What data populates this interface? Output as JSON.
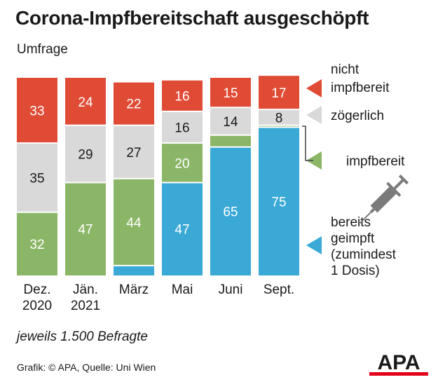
{
  "header": {
    "title": "Corona-Impfbereitschaft ausgeschöpft",
    "subtitle": "Umfrage"
  },
  "footer": {
    "note": "jeweils 1.500 Befragte",
    "credit": "Grafik: © APA, Quelle: Uni Wien",
    "logo_text": "APA"
  },
  "chart_data": {
    "type": "bar",
    "stacked": true,
    "categories": [
      [
        "Dez.",
        "2020"
      ],
      [
        "Jän.",
        "2021"
      ],
      [
        "März"
      ],
      [
        "Mai"
      ],
      [
        "Juni"
      ],
      [
        "Sept."
      ]
    ],
    "ylim": [
      0,
      100
    ],
    "series": [
      {
        "name": "bereits geimpft (zumindest 1 Dosis)",
        "color": "#3aa9d6",
        "values": [
          0,
          0,
          5,
          47,
          65,
          75
        ],
        "labels": [
          "",
          "",
          "",
          "47",
          "65",
          "75"
        ]
      },
      {
        "name": "impfbereit",
        "color": "#8bb667",
        "values": [
          32,
          47,
          44,
          20,
          6,
          1
        ],
        "labels": [
          "32",
          "47",
          "44",
          "20",
          "",
          ""
        ]
      },
      {
        "name": "zögerlich",
        "color": "#d9d9d9",
        "values": [
          35,
          29,
          27,
          16,
          14,
          8
        ],
        "labels": [
          "35",
          "29",
          "27",
          "16",
          "14",
          "8"
        ]
      },
      {
        "name": "nicht impfbereit",
        "color": "#e04b35",
        "values": [
          33,
          24,
          22,
          16,
          15,
          17
        ],
        "labels": [
          "33",
          "24",
          "22",
          "16",
          "15",
          "17"
        ]
      }
    ],
    "legend": [
      {
        "lines": [
          "nicht",
          "impfbereit"
        ],
        "color": "#e04b35"
      },
      {
        "lines": [
          "zögerlich"
        ],
        "color": "#d9d9d9"
      },
      {
        "lines": [
          "impfbereit"
        ],
        "color": "#8bb667"
      },
      {
        "lines": [
          "bereits",
          "geimpft",
          "(zumindest",
          "1 Dosis)"
        ],
        "color": "#3aa9d6"
      }
    ],
    "legend_position": "right",
    "grid": false
  }
}
